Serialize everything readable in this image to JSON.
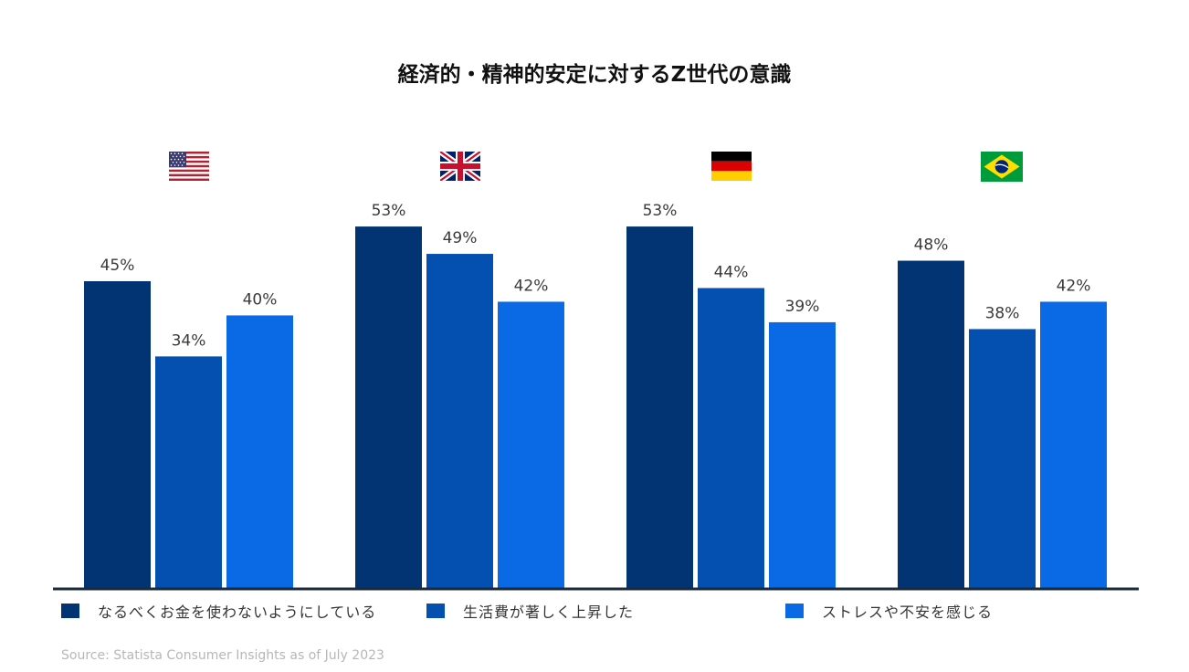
{
  "colors": {
    "series_1": "#023474",
    "series_2": "#0350B0",
    "series_3": "#0A69E4",
    "axis": "#1b2a3a"
  },
  "chart_data": {
    "type": "bar",
    "title": "経済的・精神的安定に対するZ世代の意識",
    "categories": [
      "US",
      "UK",
      "DE",
      "BR"
    ],
    "category_icons": [
      "us-flag-icon",
      "uk-flag-icon",
      "germany-flag-icon",
      "brazil-flag-icon"
    ],
    "ylim": [
      0,
      60
    ],
    "grid": false,
    "legend_position": "bottom",
    "xlabel": "",
    "ylabel": "",
    "series": [
      {
        "name": "なるべくお金を使わないようにしている",
        "values": [
          45,
          53,
          53,
          48
        ],
        "labels": [
          "45%",
          "53%",
          "53%",
          "48%"
        ]
      },
      {
        "name": "生活費が著しく上昇した",
        "values": [
          34,
          49,
          44,
          38
        ],
        "labels": [
          "34%",
          "49%",
          "44%",
          "38%"
        ]
      },
      {
        "name": "ストレスや不安を感じる",
        "values": [
          40,
          42,
          39,
          42
        ],
        "labels": [
          "40%",
          "42%",
          "39%",
          "42%"
        ]
      }
    ]
  },
  "source": "Source: Statista Consumer Insights as of July 2023"
}
